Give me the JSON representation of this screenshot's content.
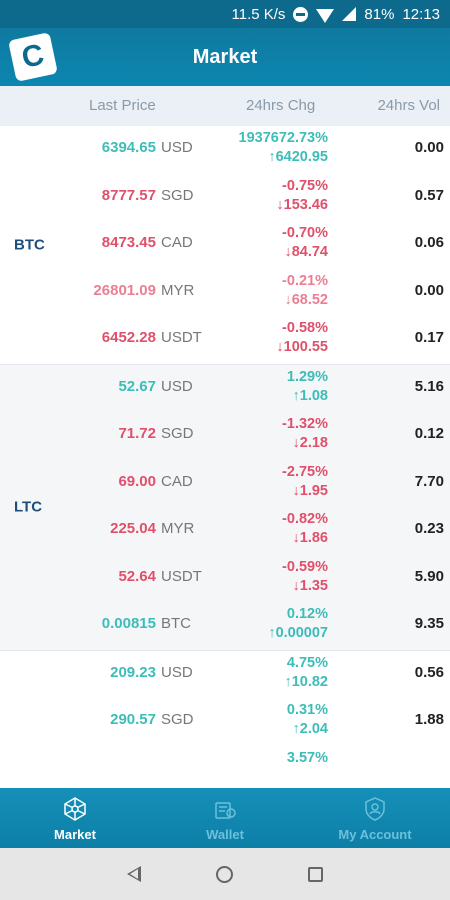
{
  "status_bar": {
    "speed": "11.5 K/s",
    "battery": "81%",
    "time": "12:13"
  },
  "header": {
    "title": "Market"
  },
  "columns": {
    "price": "Last Price",
    "change": "24hrs Chg",
    "volume": "24hrs Vol"
  },
  "groups": [
    {
      "coin": "BTC",
      "shaded": false,
      "rows": [
        {
          "price": "6394.65",
          "currency": "USD",
          "pct": "1937672.73%",
          "delta": "↑6420.95",
          "vol": "0.00",
          "dir": "up"
        },
        {
          "price": "8777.57",
          "currency": "SGD",
          "pct": "-0.75%",
          "delta": "↓153.46",
          "vol": "0.57",
          "dir": "down"
        },
        {
          "price": "8473.45",
          "currency": "CAD",
          "pct": "-0.70%",
          "delta": "↓84.74",
          "vol": "0.06",
          "dir": "down"
        },
        {
          "price": "26801.09",
          "currency": "MYR",
          "pct": "-0.21%",
          "delta": "↓68.52",
          "vol": "0.00",
          "dir": "down-light"
        },
        {
          "price": "6452.28",
          "currency": "USDT",
          "pct": "-0.58%",
          "delta": "↓100.55",
          "vol": "0.17",
          "dir": "down"
        }
      ]
    },
    {
      "coin": "LTC",
      "shaded": true,
      "rows": [
        {
          "price": "52.67",
          "currency": "USD",
          "pct": "1.29%",
          "delta": "↑1.08",
          "vol": "5.16",
          "dir": "up"
        },
        {
          "price": "71.72",
          "currency": "SGD",
          "pct": "-1.32%",
          "delta": "↓2.18",
          "vol": "0.12",
          "dir": "down"
        },
        {
          "price": "69.00",
          "currency": "CAD",
          "pct": "-2.75%",
          "delta": "↓1.95",
          "vol": "7.70",
          "dir": "down"
        },
        {
          "price": "225.04",
          "currency": "MYR",
          "pct": "-0.82%",
          "delta": "↓1.86",
          "vol": "0.23",
          "dir": "down"
        },
        {
          "price": "52.64",
          "currency": "USDT",
          "pct": "-0.59%",
          "delta": "↓1.35",
          "vol": "5.90",
          "dir": "down"
        },
        {
          "price": "0.00815",
          "currency": "BTC",
          "pct": "0.12%",
          "delta": "↑0.00007",
          "vol": "9.35",
          "dir": "up"
        }
      ]
    },
    {
      "coin": "",
      "shaded": false,
      "rows": [
        {
          "price": "209.23",
          "currency": "USD",
          "pct": "4.75%",
          "delta": "↑10.82",
          "vol": "0.56",
          "dir": "up"
        },
        {
          "price": "290.57",
          "currency": "SGD",
          "pct": "0.31%",
          "delta": "↑2.04",
          "vol": "1.88",
          "dir": "up"
        },
        {
          "price": "",
          "currency": "",
          "pct": "3.57%",
          "delta": "",
          "vol": "",
          "dir": "up"
        }
      ]
    }
  ],
  "tabs": [
    {
      "label": "Market",
      "icon": "network-icon",
      "active": true
    },
    {
      "label": "Wallet",
      "icon": "wallet-icon",
      "active": false
    },
    {
      "label": "My Account",
      "icon": "shield-user-icon",
      "active": false
    }
  ],
  "colors": {
    "accent": "#0d6a8c",
    "up": "#3dbdb8",
    "down": "#e0506a"
  }
}
